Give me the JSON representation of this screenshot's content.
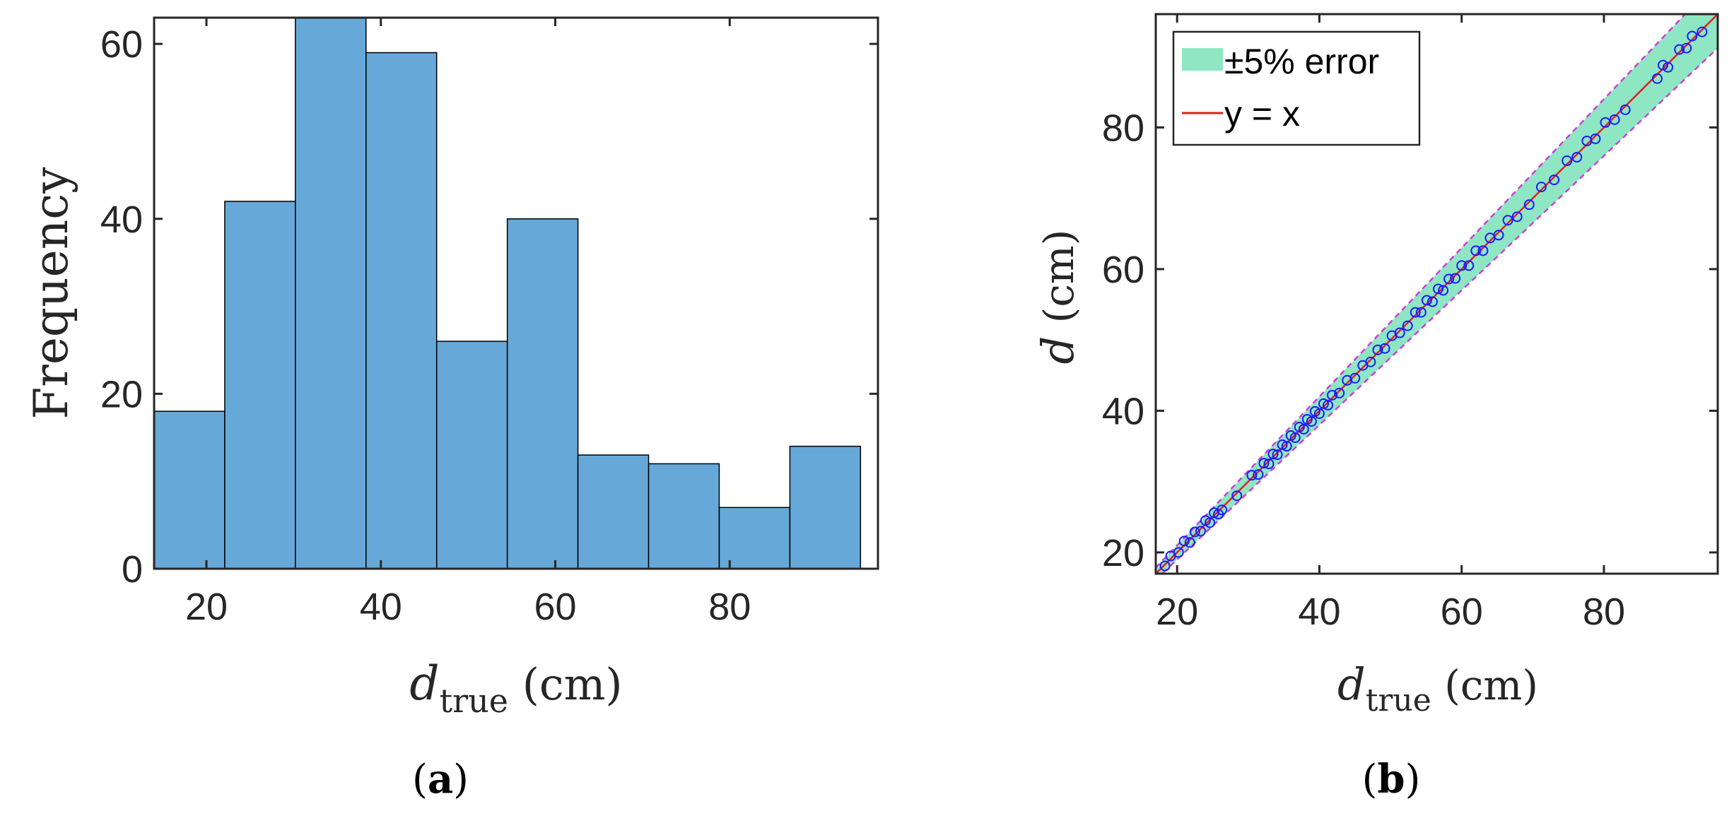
{
  "chart_data": [
    {
      "type": "bar",
      "panel_label": "a",
      "bin_edges": [
        14,
        22.1,
        30.2,
        38.3,
        46.4,
        54.5,
        62.6,
        70.7,
        78.8,
        86.9,
        95
      ],
      "values": [
        18,
        42,
        63,
        59,
        26,
        40,
        13,
        12,
        7,
        14
      ],
      "xlim": [
        14,
        97
      ],
      "ylim": [
        0,
        63
      ],
      "xticks": [
        "20",
        "40",
        "60",
        "80"
      ],
      "xtick_values": [
        20,
        40,
        60,
        80
      ],
      "yticks": [
        "0",
        "20",
        "40",
        "60"
      ],
      "ytick_values": [
        0,
        20,
        40,
        60
      ],
      "xlabel": {
        "symbol": "d",
        "subscript": "true",
        "unit": " (cm)"
      },
      "ylabel": "Frequency",
      "bar_color": "#66a8d8",
      "edge_color": "#000000"
    },
    {
      "type": "scatter",
      "panel_label": "b",
      "xlim": [
        17,
        96
      ],
      "ylim": [
        17,
        96
      ],
      "xticks": [
        "20",
        "40",
        "60",
        "80"
      ],
      "xtick_values": [
        20,
        40,
        60,
        80
      ],
      "yticks": [
        "20",
        "40",
        "60",
        "80"
      ],
      "ytick_values": [
        20,
        40,
        60,
        80
      ],
      "xlabel": {
        "symbol": "d",
        "subscript": "true",
        "unit": " (cm)"
      },
      "ylabel": {
        "symbol": "d",
        "unit": " (cm)"
      },
      "error_band_fraction": 0.05,
      "legend": [
        {
          "label": "±5% error",
          "kind": "band",
          "color": "#8ee6c3"
        },
        {
          "label": "y = x",
          "kind": "line",
          "color": "#e02020"
        }
      ],
      "legend_position": "top-left",
      "band_edge_color": "#d03cd8",
      "marker_color": "#1a1aff",
      "points": {
        "x": [
          18.3,
          19.1,
          20.2,
          21.0,
          21.8,
          22.5,
          23.3,
          24.0,
          24.6,
          25.2,
          25.8,
          26.3,
          28.4,
          30.5,
          31.4,
          32.2,
          32.9,
          33.5,
          34.1,
          34.8,
          35.4,
          36.0,
          36.6,
          37.2,
          37.8,
          38.3,
          38.9,
          39.4,
          40.0,
          40.6,
          41.2,
          41.8,
          42.8,
          43.9,
          45.0,
          46.1,
          47.2,
          48.2,
          49.2,
          50.2,
          51.3,
          52.4,
          53.5,
          54.3,
          55.1,
          55.9,
          56.7,
          57.4,
          58.2,
          59.1,
          60.0,
          61.0,
          62.0,
          63.0,
          64.0,
          65.2,
          66.5,
          67.8,
          69.5,
          71.2,
          73.0,
          74.8,
          76.2,
          77.6,
          78.8,
          80.2,
          81.5,
          83.0,
          87.5,
          88.3,
          89.0,
          90.6,
          91.6,
          92.4,
          93.8
        ],
        "y": [
          18.1,
          19.5,
          20.0,
          21.6,
          21.4,
          22.9,
          23.0,
          24.5,
          24.2,
          25.6,
          25.4,
          26.0,
          28.0,
          30.9,
          31.0,
          32.6,
          32.5,
          33.9,
          33.8,
          35.2,
          35.0,
          36.5,
          36.2,
          37.7,
          37.4,
          38.8,
          38.5,
          39.9,
          39.6,
          41.0,
          40.8,
          42.2,
          42.5,
          44.3,
          44.6,
          46.4,
          46.9,
          48.6,
          48.8,
          50.6,
          51.0,
          52.0,
          53.9,
          53.9,
          55.6,
          55.4,
          57.2,
          57.0,
          58.6,
          58.7,
          60.5,
          60.5,
          62.6,
          62.6,
          64.4,
          64.8,
          66.9,
          67.4,
          69.1,
          71.6,
          72.6,
          75.3,
          75.8,
          78.1,
          78.4,
          80.7,
          81.1,
          82.5,
          86.9,
          88.8,
          88.5,
          91.0,
          91.2,
          92.9,
          93.5
        ]
      }
    }
  ]
}
